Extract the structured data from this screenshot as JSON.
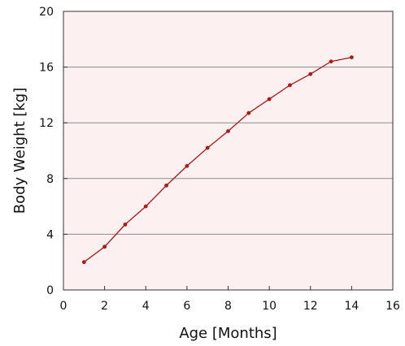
{
  "chart_data": {
    "type": "line",
    "title": "",
    "xlabel": "Age [Months]",
    "ylabel": "Body Weight [kg]",
    "xlim": [
      0,
      16
    ],
    "ylim": [
      0,
      20
    ],
    "xticks": [
      0,
      2,
      4,
      6,
      8,
      10,
      12,
      14,
      16
    ],
    "yticks": [
      0,
      4,
      8,
      12,
      16,
      20
    ],
    "grid": "horizontal",
    "legend": "none",
    "colors": {
      "plot_background": "#fcf0f0",
      "line": "#b01818",
      "gridline": "#8c8c8c",
      "axis": "#333333"
    },
    "series": [
      {
        "x": [
          1,
          2,
          3,
          4,
          5,
          6,
          7,
          8,
          9,
          10,
          11,
          12,
          13,
          14
        ],
        "y": [
          2.0,
          3.1,
          4.7,
          6.0,
          7.5,
          8.9,
          10.2,
          11.4,
          12.7,
          13.7,
          14.7,
          15.5,
          16.4,
          16.7
        ]
      }
    ]
  }
}
